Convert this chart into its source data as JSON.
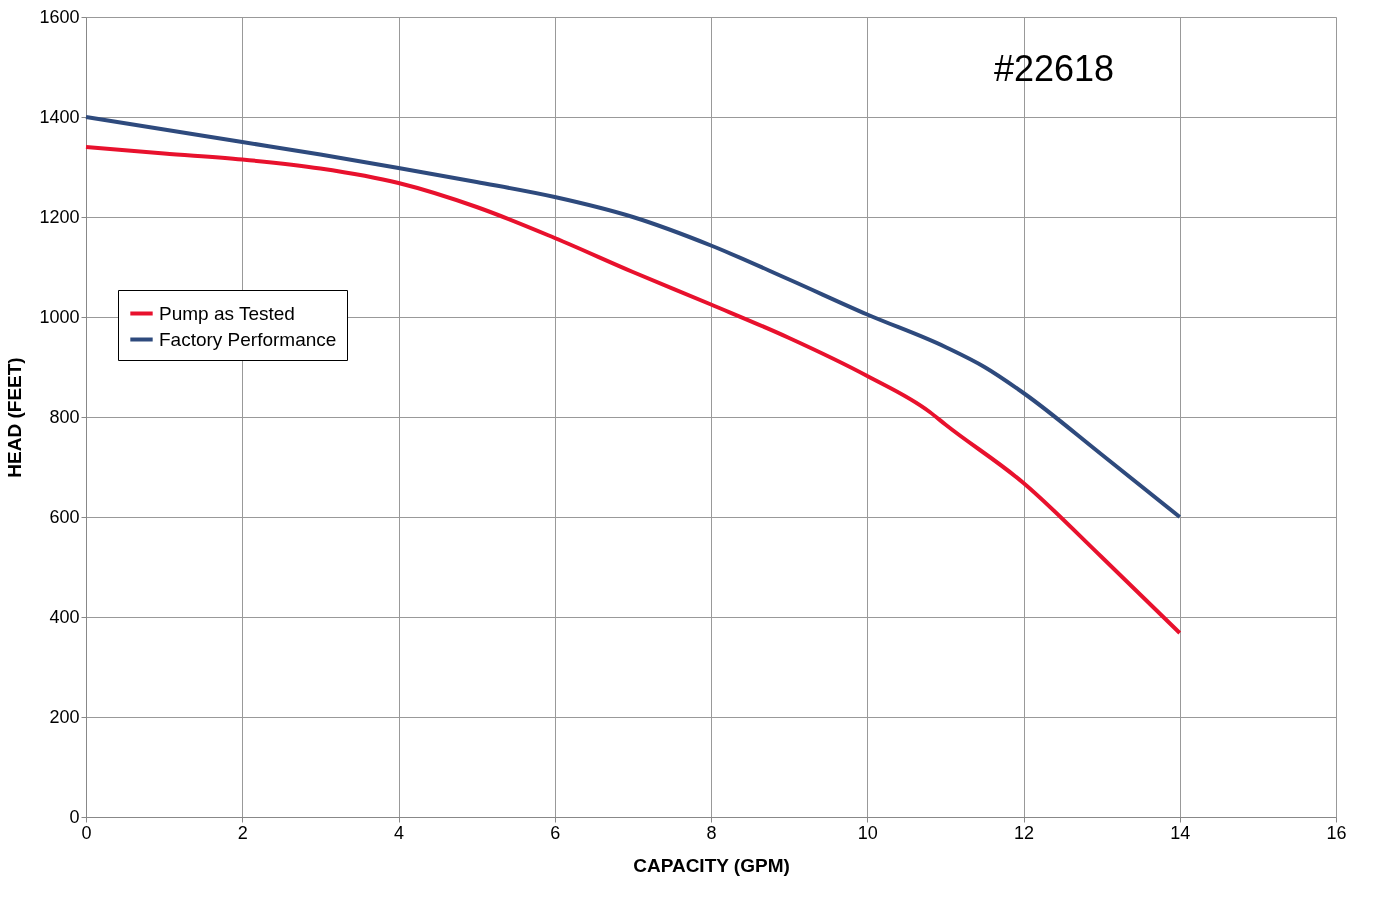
{
  "chart_data": {
    "type": "line",
    "xlabel": "CAPACITY (GPM)",
    "ylabel": "HEAD (FEET)",
    "xlim": [
      0,
      16
    ],
    "xticks": [
      0,
      2,
      4,
      6,
      8,
      10,
      12,
      14,
      16
    ],
    "ylim": [
      0,
      1600
    ],
    "yticks": [
      0,
      200,
      400,
      600,
      800,
      1000,
      1200,
      1400,
      1600
    ],
    "grid": true,
    "legend": "top left",
    "line_style": "solid",
    "marker": "none",
    "annotations": [
      "#22618"
    ],
    "series": [
      {
        "name": "Pump as Tested",
        "color": "#e8112d",
        "x": [
          0,
          1,
          2,
          3,
          4,
          5,
          6,
          7,
          8,
          9,
          10,
          10.8,
          11,
          12,
          13,
          14
        ],
        "values": [
          1340,
          1327,
          1315,
          1297,
          1268,
          1220,
          1158,
          1090,
          1025,
          958,
          882,
          810,
          785,
          668,
          520,
          368
        ]
      },
      {
        "name": "Factory Performance",
        "color": "#2e4a7d",
        "x": [
          0,
          1,
          2,
          3,
          4,
          5,
          6,
          7,
          8,
          9,
          10,
          11,
          11.5,
          12,
          13,
          14
        ],
        "values": [
          1400,
          1375,
          1350,
          1325,
          1298,
          1270,
          1240,
          1200,
          1143,
          1075,
          1005,
          940,
          900,
          848,
          725,
          600
        ]
      }
    ]
  }
}
